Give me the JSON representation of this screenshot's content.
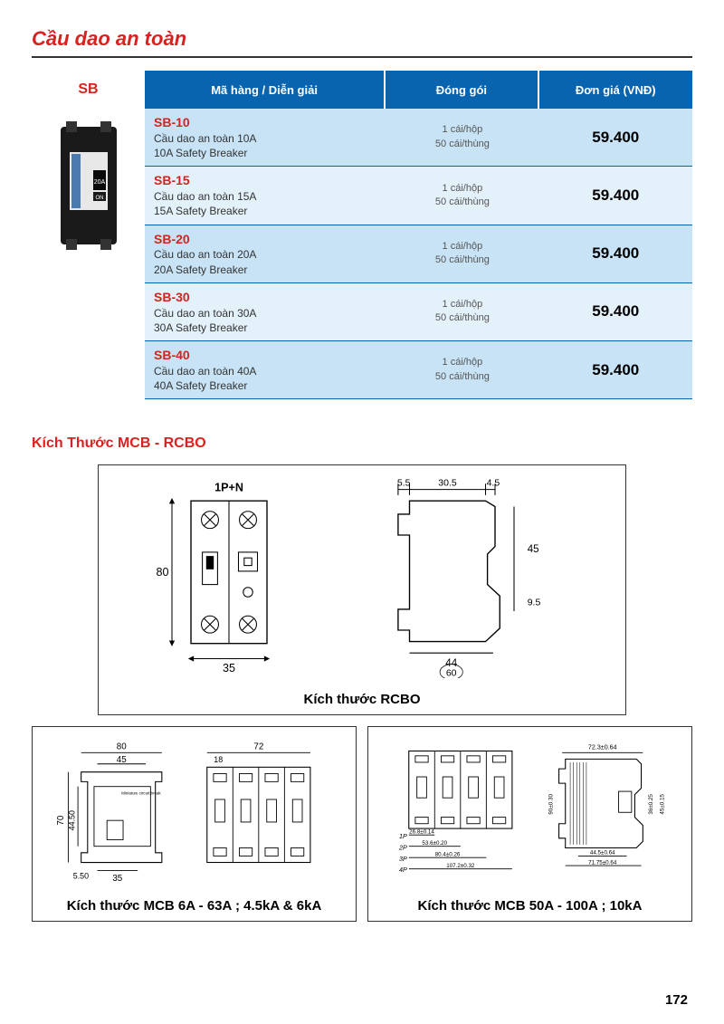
{
  "page": {
    "title": "Cầu dao an toàn",
    "number": "172"
  },
  "sb_label": "SB",
  "table": {
    "headers": {
      "desc": "Mã hàng / Diễn giải",
      "pack": "Đóng gói",
      "price": "Đơn giá (VNĐ)"
    },
    "pack_line1": "1 cái/hộp",
    "pack_line2": "50 cái/thùng",
    "rows": [
      {
        "code": "SB-10",
        "vn": "Cầu dao an toàn 10A",
        "en": "10A Safety Breaker",
        "price": "59.400"
      },
      {
        "code": "SB-15",
        "vn": "Cầu dao an toàn 15A",
        "en": "15A Safety Breaker",
        "price": "59.400"
      },
      {
        "code": "SB-20",
        "vn": "Cầu dao an toàn 20A",
        "en": "20A Safety Breaker",
        "price": "59.400"
      },
      {
        "code": "SB-30",
        "vn": "Cầu dao an toàn 30A",
        "en": "30A Safety Breaker",
        "price": "59.400"
      },
      {
        "code": "SB-40",
        "vn": "Cầu dao an toàn 40A",
        "en": "40A Safety Breaker",
        "price": "59.400"
      }
    ]
  },
  "section2_title": "Kích Thước MCB - RCBO",
  "diagrams": {
    "rcbo": {
      "caption": "Kích thước RCBO",
      "label_top": "1P+N",
      "dims": {
        "w": "35",
        "h": "80",
        "side_top_a": "5.5",
        "side_top_b": "30.5",
        "side_top_c": "4.5",
        "side_h": "45",
        "side_notch": "9.5",
        "side_w": "44",
        "side_total": "60"
      }
    },
    "mcb_small": {
      "caption": "Kích thước MCB 6A - 63A ; 4.5kA & 6kA",
      "dims": {
        "total_w": "80",
        "inner_w": "45",
        "h": "70",
        "inner_h": "44.50",
        "bottom_h": "5.50",
        "bottom_w": "35",
        "right_w": "72",
        "right_seg": "18"
      }
    },
    "mcb_large": {
      "caption": "Kích thước MCB 50A - 100A ; 10kA",
      "dims": {
        "p1": "1P",
        "p2": "2P",
        "p3": "3P",
        "p4": "4P",
        "w1": "26.8±0.14",
        "w2": "53.6±0.20",
        "w3": "80.4±0.26",
        "w4": "107.2±0.32",
        "side_top": "72.3±0.64",
        "side_h1": "90±0.30",
        "side_h2": "36±0.25",
        "side_h3": "45±0.15",
        "side_bot1": "44.5±0.64",
        "side_bot2": "71.75±0.64"
      }
    }
  },
  "colors": {
    "accent_red": "#d8221f",
    "header_blue": "#0864ae",
    "row_light": "#e3f1fb",
    "row_dark": "#c7e3f5"
  }
}
